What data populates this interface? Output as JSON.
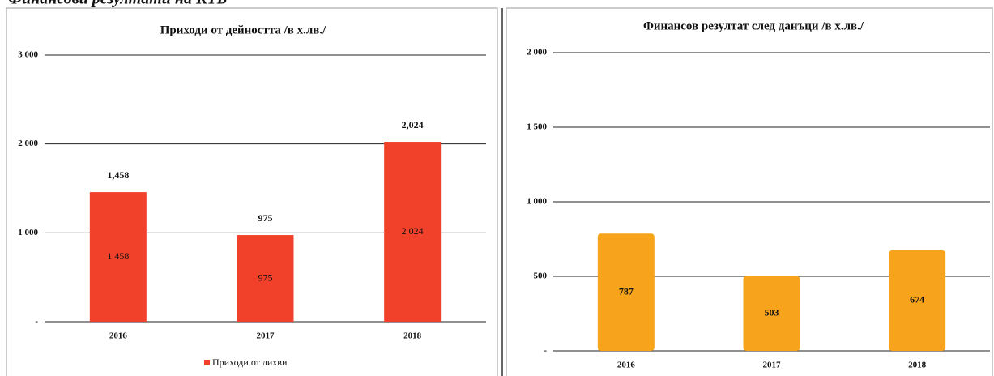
{
  "heading": "Финансови резултати на КТБ",
  "chart_data": [
    {
      "type": "bar",
      "title": "Приходи от дейността /в х.лв./",
      "categories": [
        "2016",
        "2017",
        "2018"
      ],
      "series": [
        {
          "name": "Приходи от лихви",
          "color": "#f2412b",
          "values": [
            1458,
            975,
            2024
          ],
          "value_labels": [
            "1,458",
            "975",
            "2,024"
          ],
          "inner_value_labels": [
            "1 458",
            "975",
            "2 024"
          ]
        }
      ],
      "ylim": [
        0,
        3000
      ],
      "yticks": [
        {
          "value": 0,
          "label": "-"
        },
        {
          "value": 1000,
          "label": "1 000"
        },
        {
          "value": 2000,
          "label": "2 000"
        },
        {
          "value": 3000,
          "label": "3 000"
        }
      ],
      "grid": true,
      "legend": "bottom"
    },
    {
      "type": "bar",
      "title": "Финансов резултат след данъци /в х.лв./",
      "categories": [
        "2016",
        "2017",
        "2018"
      ],
      "series": [
        {
          "color": "#f7a31c",
          "values": [
            787,
            503,
            674
          ]
        }
      ],
      "ylim": [
        0,
        2000
      ],
      "yticks": [
        {
          "value": 0,
          "label": "-"
        },
        500,
        {
          "value": 1000,
          "label": "1 000"
        },
        {
          "value": 1500,
          "label": "1 500"
        },
        {
          "value": 2000,
          "label": "2 000"
        }
      ],
      "grid": true
    }
  ]
}
